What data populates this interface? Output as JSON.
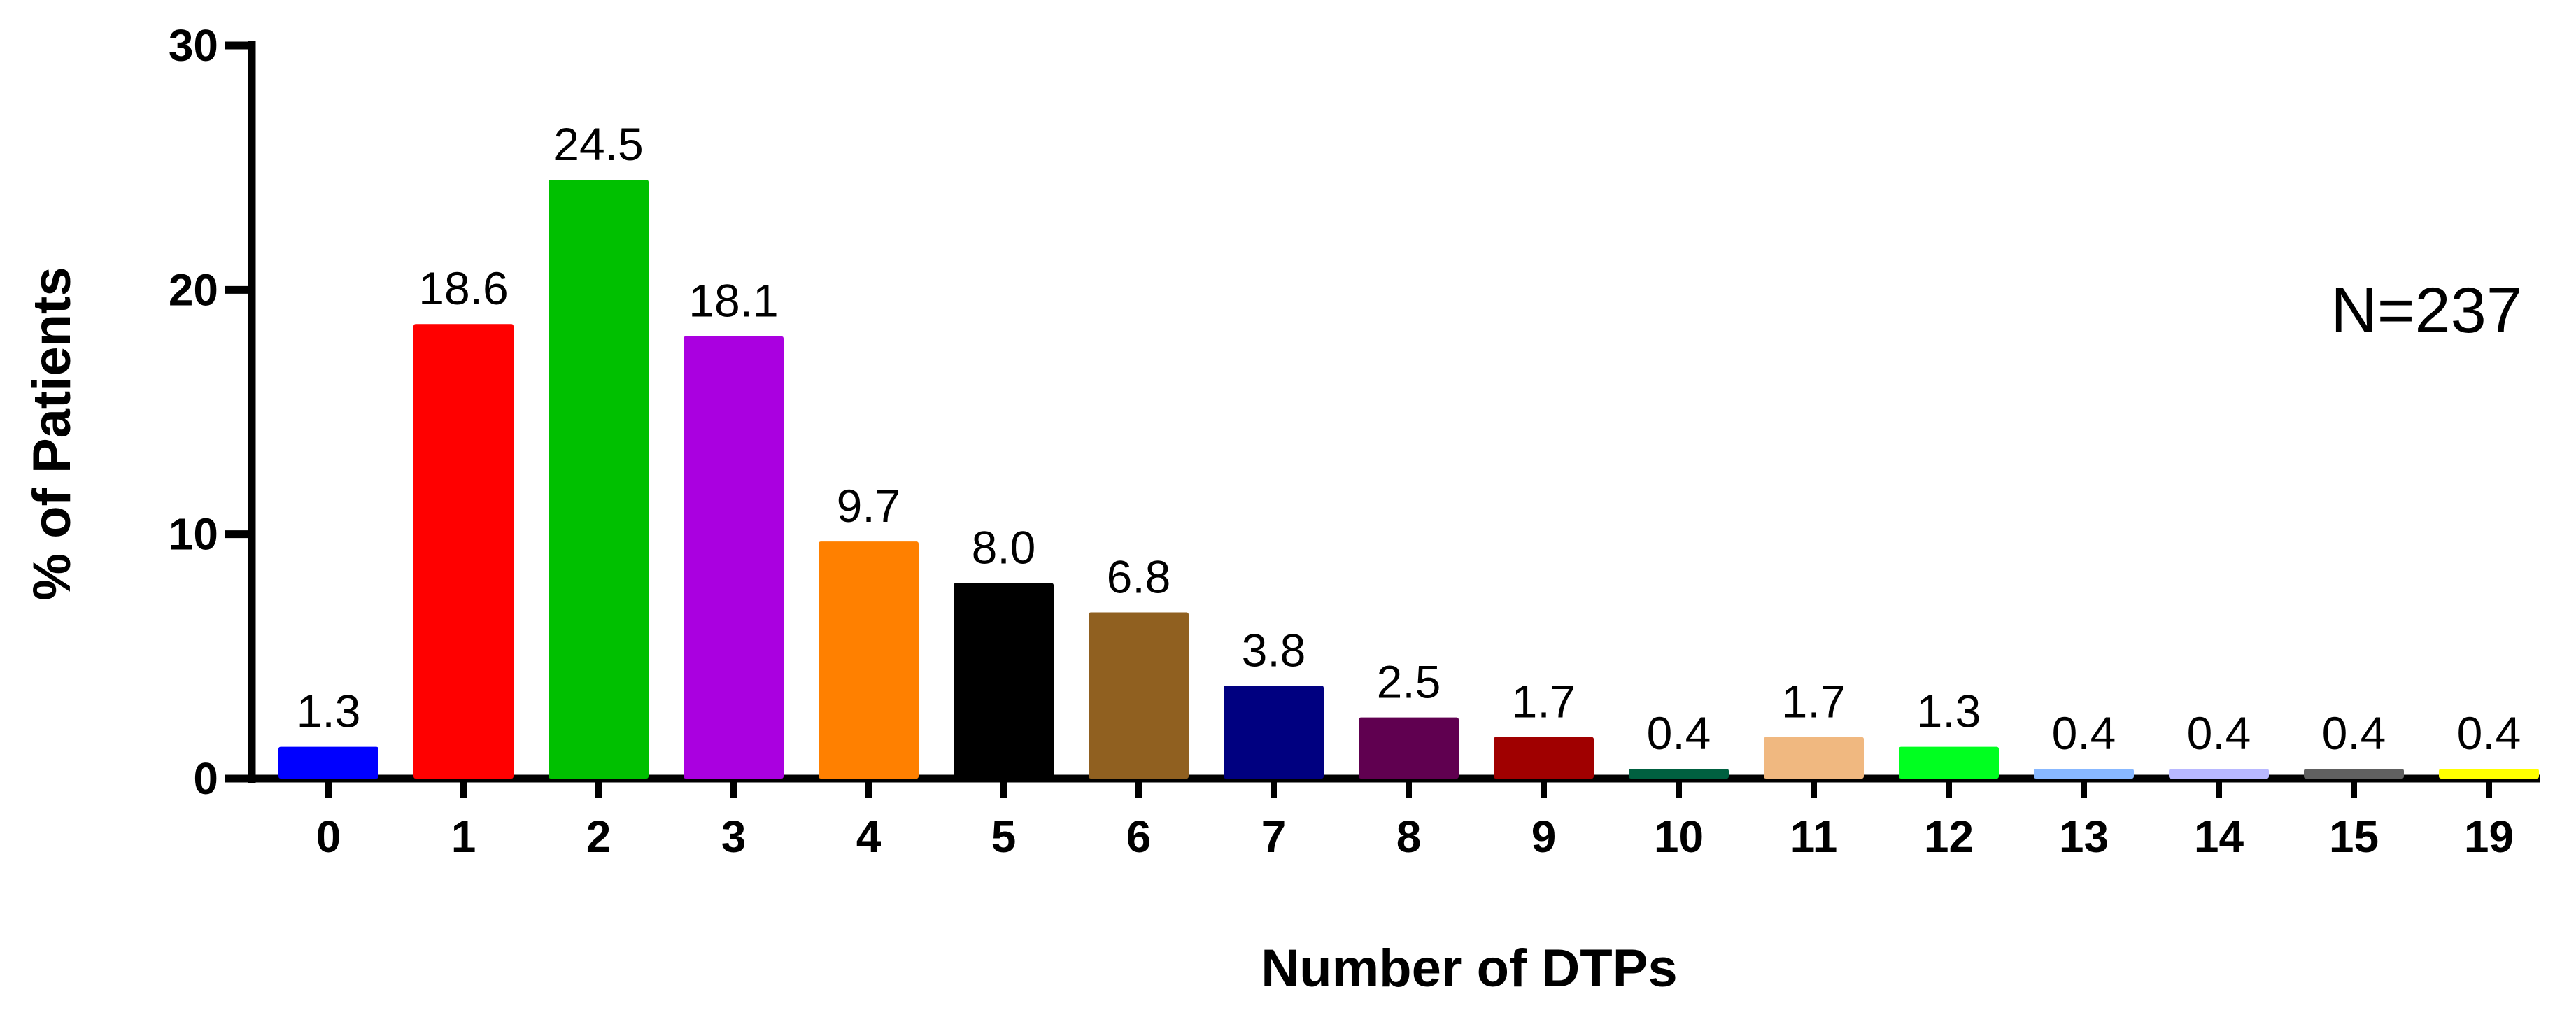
{
  "chart_data": {
    "type": "bar",
    "categories": [
      "0",
      "1",
      "2",
      "3",
      "4",
      "5",
      "6",
      "7",
      "8",
      "9",
      "10",
      "11",
      "12",
      "13",
      "14",
      "15",
      "19"
    ],
    "values": [
      1.3,
      18.6,
      24.5,
      18.1,
      9.7,
      8.0,
      6.8,
      3.8,
      2.5,
      1.7,
      0.4,
      1.7,
      1.3,
      0.4,
      0.4,
      0.4,
      0.4
    ],
    "data_labels": [
      "1.3",
      "18.6",
      "24.5",
      "18.1",
      "9.7",
      "8.0",
      "6.8",
      "3.8",
      "2.5",
      "1.7",
      "0.4",
      "1.7",
      "1.3",
      "0.4",
      "0.4",
      "0.4",
      "0.4"
    ],
    "bar_colors": [
      "#0000ff",
      "#ff0000",
      "#00c000",
      "#aa00e0",
      "#ff8000",
      "#000000",
      "#906020",
      "#000080",
      "#600050",
      "#a00000",
      "#006040",
      "#f0b880",
      "#00ff20",
      "#88b8ff",
      "#b8b8ff",
      "#606060",
      "#ffff00"
    ],
    "title": "",
    "xlabel": "Number of  DTPs",
    "ylabel": "% of Patients",
    "ylim": [
      0,
      30
    ],
    "yticks": [
      0,
      10,
      20,
      30
    ],
    "ytick_labels": [
      "0",
      "10",
      "20",
      "30"
    ],
    "annotation": "N=237",
    "grid": false,
    "legend": "none"
  }
}
